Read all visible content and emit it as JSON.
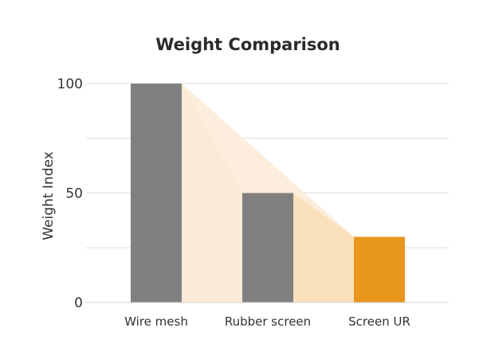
{
  "chart_data": {
    "type": "bar",
    "title": "Weight Comparison",
    "xlabel": "",
    "ylabel": "Weight Index",
    "categories": [
      "Wire mesh",
      "Rubber screen",
      "Screen UR"
    ],
    "values": [
      100,
      50,
      30
    ],
    "ylim": [
      0,
      100
    ],
    "yticks": [
      0,
      50,
      100
    ],
    "grid": true,
    "colors": {
      "bar_default": "#808080",
      "bar_highlight": "#E8961E",
      "trend_fill_light": "#FCEAD6",
      "trend_fill_dark": "#FBE0BD"
    },
    "highlight_index": 2
  }
}
